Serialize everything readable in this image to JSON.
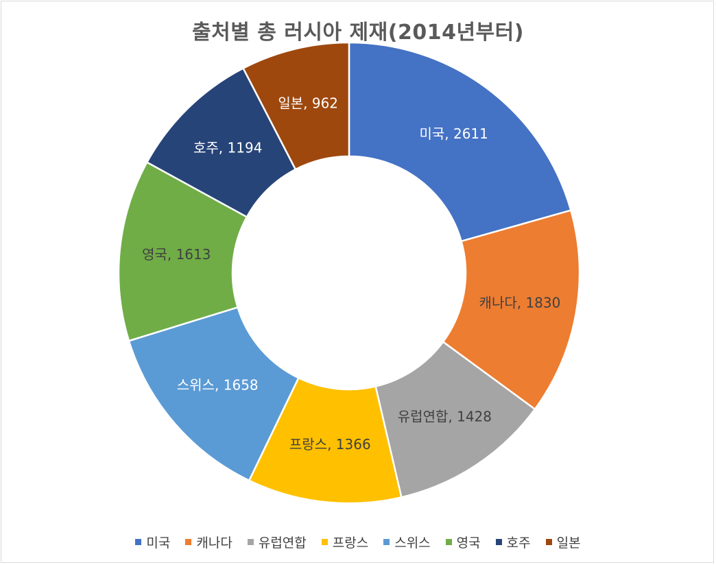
{
  "chart_data": {
    "type": "pie",
    "variant": "doughnut",
    "title": "출처별 총 러시아 제재(2014년부터)",
    "labels": [
      "미국",
      "캐나다",
      "유럽연합",
      "프랑스",
      "스위스",
      "영국",
      "호주",
      "일본"
    ],
    "values": [
      2611,
      1830,
      1428,
      1366,
      1658,
      1613,
      1194,
      962
    ],
    "colors": [
      "#4472C4",
      "#ED7D31",
      "#A5A5A5",
      "#FFC000",
      "#5B9BD5",
      "#70AD47",
      "#264478",
      "#9E480E"
    ],
    "label_colors": [
      "#ffffff",
      "#404040",
      "#404040",
      "#404040",
      "#ffffff",
      "#404040",
      "#ffffff",
      "#ffffff"
    ],
    "data_labels": [
      "미국, 2611",
      "캐나다, 1830",
      "유럽연합, 1428",
      "프랑스, 1366",
      "스위스, 1658",
      "영국, 1613",
      "호주, 1194",
      "일본, 962"
    ],
    "legend_position": "bottom"
  }
}
